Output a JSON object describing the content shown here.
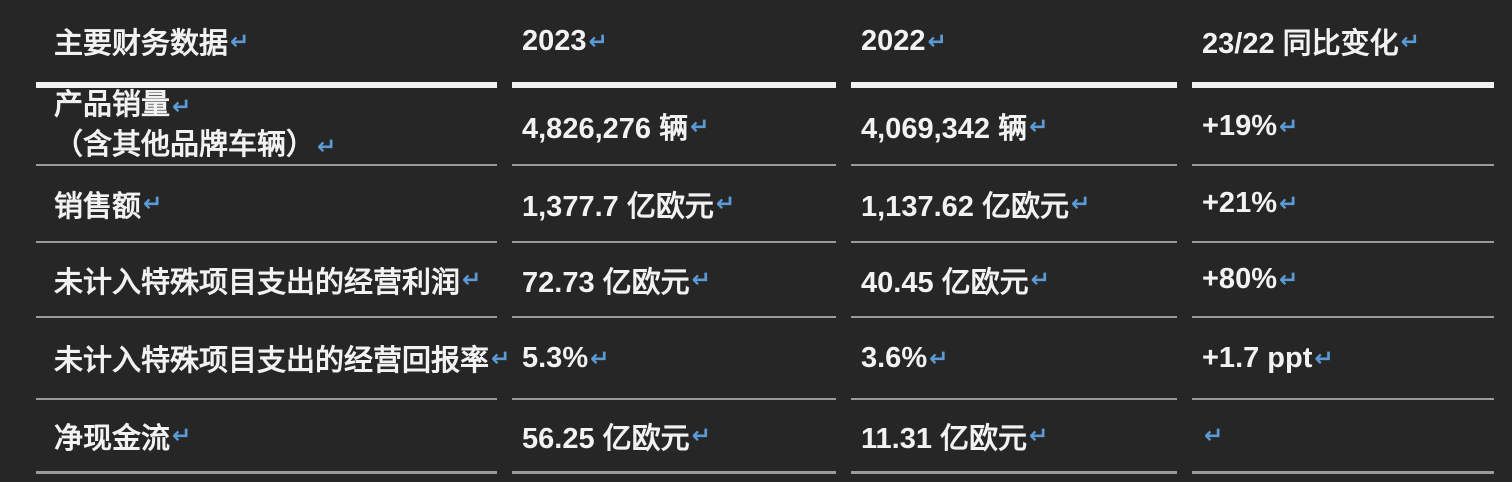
{
  "theme": {
    "background": "#262626",
    "text_color": "#f2f2f2",
    "line_break_mark_color": "#5b9bd5",
    "header_rule_color": "#f2f2f2",
    "row_rule_color": "#9a9a9a"
  },
  "marks": {
    "line_break": "↵"
  },
  "table": {
    "columns": [
      {
        "label": "主要财务数据"
      },
      {
        "label": "2023"
      },
      {
        "label": "2022"
      },
      {
        "label": "23/22 同比变化"
      }
    ],
    "rows": [
      {
        "label_lines": [
          "产品销量",
          "（含其他品牌车辆）"
        ],
        "y2023": "4,826,276 辆",
        "y2022": "4,069,342 辆",
        "change": "+19%"
      },
      {
        "label_lines": [
          "销售额"
        ],
        "y2023": "1,377.7 亿欧元",
        "y2022": "1,137.62 亿欧元",
        "change": "+21%"
      },
      {
        "label_lines": [
          "未计入特殊项目支出的经营利润"
        ],
        "y2023": "72.73 亿欧元",
        "y2022": "40.45 亿欧元",
        "change": "+80%"
      },
      {
        "label_lines": [
          "未计入特殊项目支出的经营回报率"
        ],
        "y2023": "5.3%",
        "y2022": "3.6%",
        "change": "+1.7 ppt"
      },
      {
        "label_lines": [
          "净现金流"
        ],
        "y2023": "56.25 亿欧元",
        "y2022": "11.31 亿欧元",
        "change": ""
      }
    ]
  }
}
